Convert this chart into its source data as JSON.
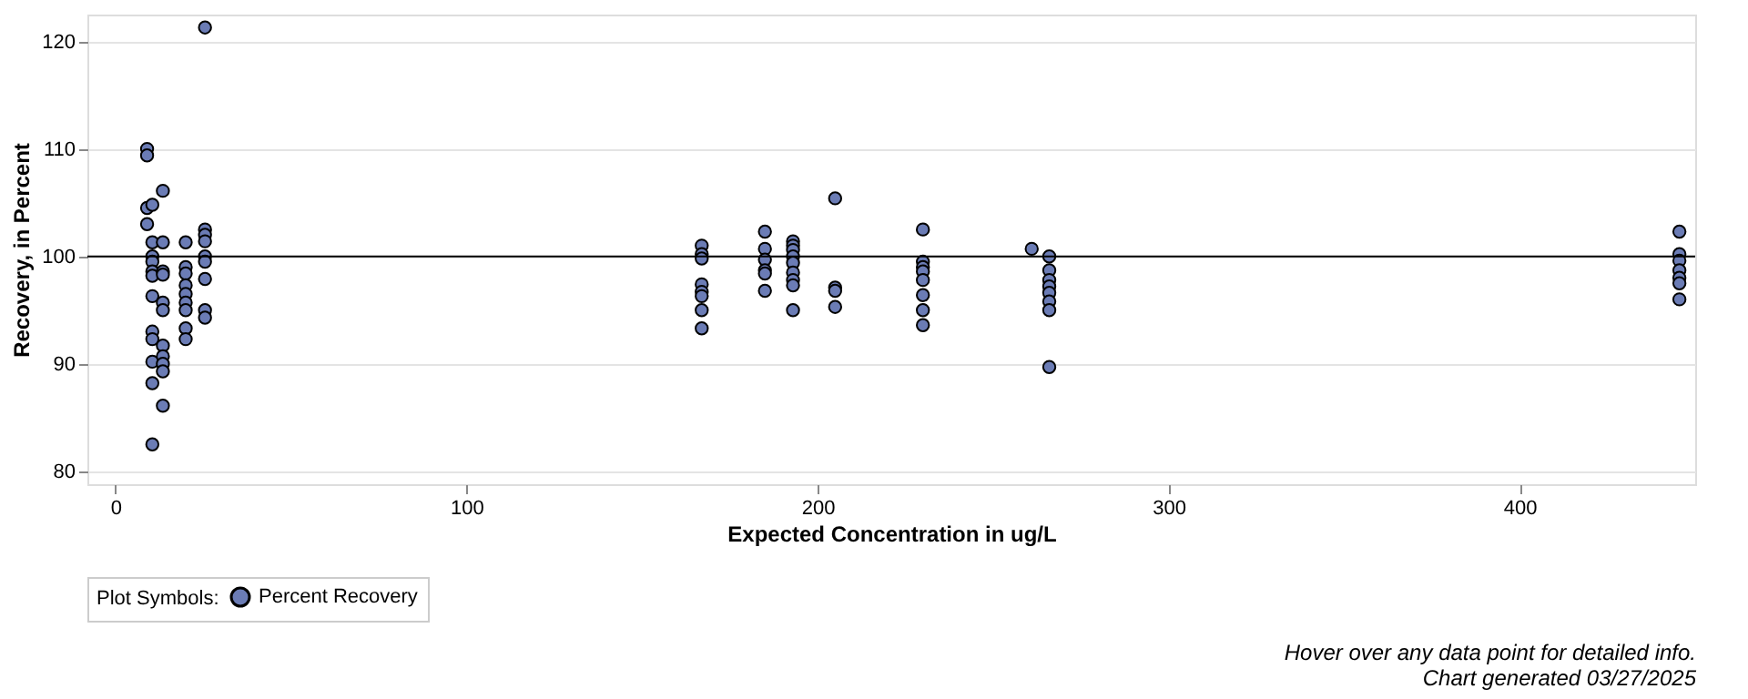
{
  "chart_data": {
    "type": "scatter",
    "xlabel": "Expected Concentration in ug/L",
    "ylabel": "Recovery, in Percent",
    "legend_title": "Plot Symbols:",
    "x": [
      9,
      9,
      9,
      9,
      10.5,
      10.5,
      10.5,
      10.5,
      10.5,
      10.5,
      10.5,
      10.5,
      10.5,
      10.5,
      10.5,
      10.5,
      13.5,
      13.5,
      13.5,
      13.5,
      13.5,
      13.5,
      13.5,
      13.5,
      13.5,
      13.5,
      13.5,
      20,
      20,
      20,
      20,
      20,
      20,
      20,
      20,
      20,
      25.5,
      25.5,
      25.5,
      25.5,
      25.5,
      25.5,
      25.5,
      25.5,
      25.5,
      167,
      167,
      167,
      167,
      167,
      167,
      167,
      167,
      185,
      185,
      185,
      185,
      185,
      185,
      193,
      193,
      193,
      193,
      193,
      193,
      193,
      193,
      193,
      205,
      205,
      205,
      205,
      230,
      230,
      230,
      230,
      230,
      230,
      230,
      230,
      261,
      266,
      266,
      266,
      266,
      266,
      266,
      266,
      266,
      445.5,
      445.5,
      445.5,
      445.5,
      445.5,
      445.5,
      445.5
    ],
    "series": [
      {
        "name": "Percent Recovery",
        "color": "#6b7cb5",
        "values": [
          110,
          109.4,
          104.5,
          103,
          104.8,
          101.3,
          100,
          99.5,
          98.6,
          98.2,
          96.3,
          93,
          92.3,
          90.2,
          88.2,
          82.5,
          106.1,
          101.3,
          98.6,
          98.3,
          95.7,
          95,
          91.7,
          90.7,
          90,
          89.3,
          86.1,
          101.3,
          99,
          98.4,
          97.3,
          96.5,
          95.7,
          95,
          93.3,
          92.3,
          121.3,
          102.5,
          102,
          101.4,
          100,
          99.5,
          97.9,
          95,
          94.3,
          101,
          100.2,
          99.8,
          97.4,
          96.7,
          96.3,
          95,
          93.3,
          102.3,
          100.7,
          99.7,
          98.7,
          98.4,
          96.8,
          101.4,
          101,
          100.6,
          100,
          99.4,
          98.5,
          97.8,
          97.3,
          95,
          105.4,
          97.1,
          96.8,
          95.3,
          102.5,
          99.5,
          99,
          98.6,
          97.8,
          96.4,
          95,
          93.6,
          100.7,
          100,
          98.7,
          97.8,
          97.2,
          96.6,
          95.8,
          95,
          89.7,
          102.3,
          100.2,
          99.6,
          98.7,
          98,
          97.5,
          96
        ]
      }
    ],
    "xlim": [
      -8,
      450
    ],
    "xticks": [
      0,
      100,
      200,
      300,
      400
    ],
    "ylim": [
      78.8,
      122.5
    ],
    "yticks": [
      80,
      90,
      100,
      110,
      120
    ],
    "ref_lines": [
      {
        "axis": "y",
        "value": 100,
        "color": "#000000"
      }
    ],
    "grid": "y",
    "legend": "bottom",
    "marker": "circle",
    "annotations": [
      "Hover over any data point for detailed info.",
      "Chart generated 03/27/2025"
    ]
  }
}
